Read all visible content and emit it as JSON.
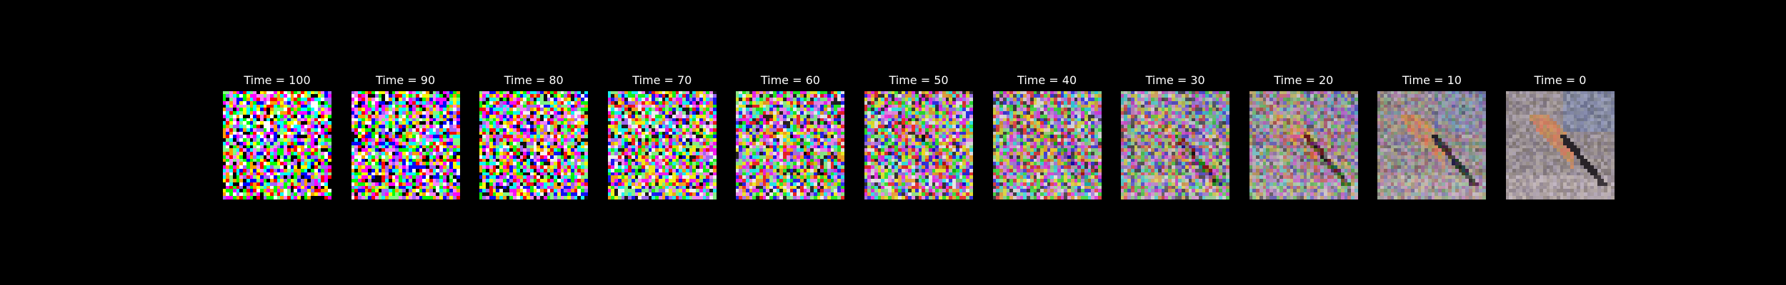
{
  "figure": {
    "background": "#000000",
    "title_color": "#ffffff",
    "panels": [
      {
        "title": "Time = 100",
        "time": 100,
        "noise_fraction": 1.0
      },
      {
        "title": "Time = 90",
        "time": 90,
        "noise_fraction": 0.95
      },
      {
        "title": "Time = 80",
        "time": 80,
        "noise_fraction": 0.9
      },
      {
        "title": "Time = 70",
        "time": 70,
        "noise_fraction": 0.84
      },
      {
        "title": "Time = 60",
        "time": 60,
        "noise_fraction": 0.76
      },
      {
        "title": "Time = 50",
        "time": 50,
        "noise_fraction": 0.67
      },
      {
        "title": "Time = 40",
        "time": 40,
        "noise_fraction": 0.56
      },
      {
        "title": "Time = 30",
        "time": 30,
        "noise_fraction": 0.43
      },
      {
        "title": "Time = 20",
        "time": 20,
        "noise_fraction": 0.3
      },
      {
        "title": "Time = 10",
        "time": 10,
        "noise_fraction": 0.15
      },
      {
        "title": "Time = 0",
        "time": 0,
        "noise_fraction": 0.0
      }
    ]
  }
}
